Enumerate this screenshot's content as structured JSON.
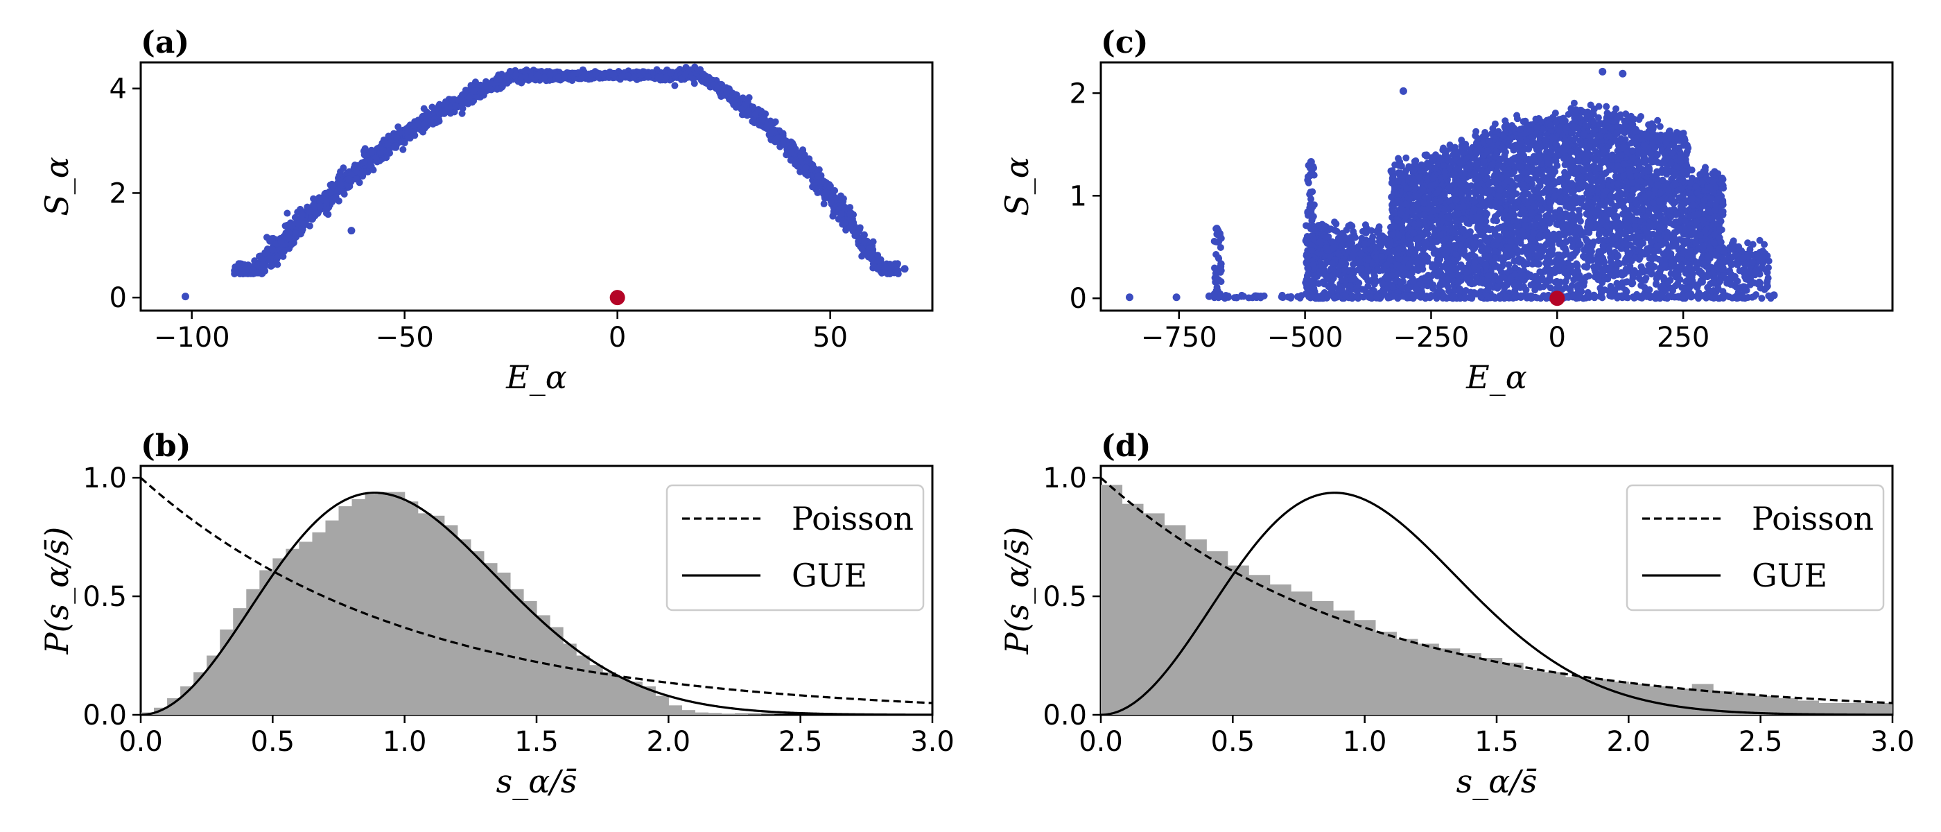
{
  "chart_data": [
    {
      "id": "a",
      "type": "scatter",
      "panel_label": "(a)",
      "xlabel": "E_α",
      "ylabel": "S_α",
      "xlim": [
        -112,
        74
      ],
      "ylim": [
        -0.25,
        4.5
      ],
      "xticks": [
        -100,
        -50,
        0,
        50
      ],
      "xtick_labels": [
        "−100",
        "−50",
        "0",
        "50"
      ],
      "yticks": [
        0,
        2,
        4
      ],
      "ytick_labels": [
        "0",
        "2",
        "4"
      ],
      "series_color": "#3b4cc0",
      "highlight_color": "#b40426",
      "outliers": [
        [
          -101.5,
          0.02
        ],
        [
          -62.5,
          1.28
        ],
        [
          67.5,
          0.55
        ]
      ],
      "arc": {
        "e_min": -90,
        "e_max": 66,
        "peak_e": 1,
        "peak_s": 4.25
      },
      "highlight_point": [
        0,
        0
      ],
      "legend_position": "none"
    },
    {
      "id": "c",
      "type": "scatter",
      "panel_label": "(c)",
      "xlabel": "E_α",
      "ylabel": "S_α",
      "xlim": [
        -905,
        665
      ],
      "ylim": [
        -0.12,
        2.3
      ],
      "xticks": [
        -750,
        -500,
        -250,
        0,
        250
      ],
      "xtick_labels": [
        "−750",
        "−500",
        "−250",
        "0",
        "250"
      ],
      "yticks": [
        0,
        1,
        2
      ],
      "ytick_labels": [
        "0",
        "1",
        "2"
      ],
      "series_color": "#3b4cc0",
      "highlight_color": "#b40426",
      "outliers": [
        [
          -848,
          0.01
        ],
        [
          -755,
          0.01
        ],
        [
          -690,
          0.02
        ],
        [
          -675,
          0.68
        ],
        [
          -672,
          0.55
        ],
        [
          -488,
          1.33
        ],
        [
          -305,
          2.02
        ],
        [
          90,
          2.21
        ],
        [
          130,
          2.19
        ],
        [
          430,
          0.03
        ]
      ],
      "highlight_point": [
        0,
        0
      ],
      "legend_position": "none"
    },
    {
      "id": "b",
      "type": "bar",
      "panel_label": "(b)",
      "xlabel": "s_α/s̄",
      "ylabel": "P(s_α/s̄)",
      "xlim": [
        0,
        3
      ],
      "ylim": [
        0,
        1.05
      ],
      "xticks": [
        0,
        0.5,
        1,
        1.5,
        2,
        2.5,
        3
      ],
      "xtick_labels": [
        "0.0",
        "0.5",
        "1.0",
        "1.5",
        "2.0",
        "2.5",
        "3.0"
      ],
      "yticks": [
        0,
        0.5,
        1
      ],
      "ytick_labels": [
        "0.0",
        "0.5",
        "1.0"
      ],
      "bin_width": 0.05,
      "histogram": [
        0.01,
        0.03,
        0.07,
        0.12,
        0.18,
        0.25,
        0.36,
        0.45,
        0.53,
        0.61,
        0.66,
        0.7,
        0.73,
        0.77,
        0.82,
        0.88,
        0.91,
        0.93,
        0.94,
        0.94,
        0.9,
        0.85,
        0.84,
        0.8,
        0.74,
        0.69,
        0.64,
        0.6,
        0.53,
        0.48,
        0.42,
        0.37,
        0.3,
        0.25,
        0.21,
        0.18,
        0.16,
        0.14,
        0.12,
        0.08,
        0.04,
        0.02,
        0.01,
        0.008,
        0.005,
        0.003,
        0.002,
        0.001,
        0.0,
        0.0,
        0.0,
        0.0,
        0.0,
        0.0,
        0.0,
        0.0,
        0.0,
        0.0,
        0.0,
        0.0
      ],
      "histogram_color": "#a6a6a6",
      "curves": [
        {
          "name": "Poisson",
          "formula": "exp(-s)",
          "style": "dashed"
        },
        {
          "name": "GUE",
          "formula": "(32/pi^2) s^2 exp(-4 s^2/pi)",
          "style": "solid"
        }
      ],
      "legend_position": "top-right"
    },
    {
      "id": "d",
      "type": "bar",
      "panel_label": "(d)",
      "xlabel": "s_α/s̄",
      "ylabel": "P(s_α/s̄)",
      "xlim": [
        0,
        3
      ],
      "ylim": [
        0,
        1.05
      ],
      "xticks": [
        0,
        0.5,
        1,
        1.5,
        2,
        2.5,
        3
      ],
      "xtick_labels": [
        "0.0",
        "0.5",
        "1.0",
        "1.5",
        "2.0",
        "2.5",
        "3.0"
      ],
      "yticks": [
        0,
        0.5,
        1
      ],
      "ytick_labels": [
        "0.0",
        "0.5",
        "1.0"
      ],
      "bin_width": 0.08,
      "histogram": [
        0.97,
        0.89,
        0.85,
        0.8,
        0.74,
        0.69,
        0.63,
        0.59,
        0.55,
        0.52,
        0.48,
        0.44,
        0.4,
        0.35,
        0.32,
        0.3,
        0.28,
        0.26,
        0.24,
        0.22,
        0.19,
        0.18,
        0.16,
        0.15,
        0.14,
        0.13,
        0.12,
        0.11,
        0.13,
        0.1,
        0.09,
        0.08,
        0.07,
        0.06,
        0.05,
        0.05,
        0.05,
        0.05
      ],
      "histogram_color": "#a6a6a6",
      "curves": [
        {
          "name": "Poisson",
          "formula": "exp(-s)",
          "style": "dashed"
        },
        {
          "name": "GUE",
          "formula": "(32/pi^2) s^2 exp(-4 s^2/pi)",
          "style": "solid"
        }
      ],
      "legend_position": "top-right"
    }
  ]
}
